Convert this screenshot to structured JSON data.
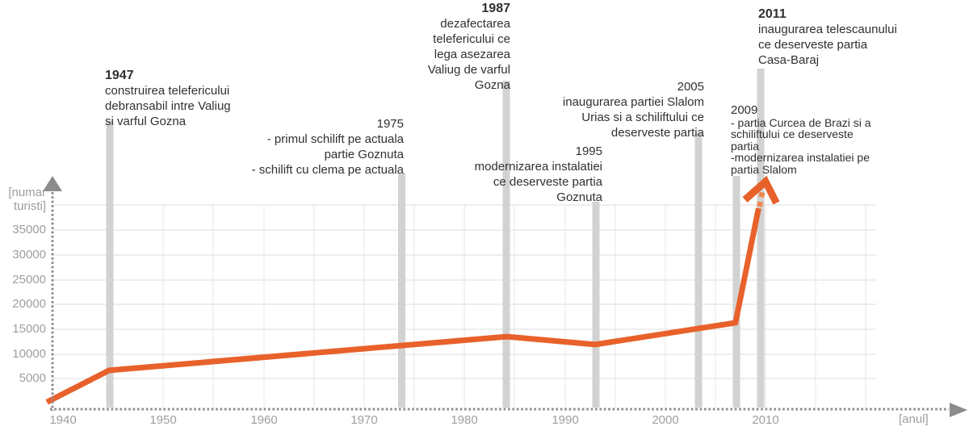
{
  "chart_data": {
    "type": "line",
    "title": "",
    "xlabel": "[anul]",
    "ylabel": "[numar\nturisti]",
    "x_ticks": [
      "1940",
      "1950",
      "1960",
      "1970",
      "1980",
      "1990",
      "2000",
      "2010"
    ],
    "y_ticks": [
      "35000",
      "30000",
      "25000",
      "20000",
      "15000",
      "10000",
      "5000"
    ],
    "x_range": [
      1937,
      2015
    ],
    "ylim": [
      0,
      40000
    ],
    "grid": true,
    "legend": "none",
    "series": [
      {
        "name": "numar turisti",
        "points": [
          [
            1938.4,
            300
          ],
          [
            1944.6,
            6700
          ],
          [
            1984.2,
            13500
          ],
          [
            1993.0,
            11900
          ],
          [
            2007.0,
            16300
          ],
          [
            2009.3,
            39400
          ]
        ],
        "continues_off_chart_with_dashed_segment_and_up_arrow": true
      }
    ],
    "events": [
      {
        "year": "1947",
        "bold": true,
        "text": "construirea telefericului\ndebransabil intre Valiug\nsi varful Gozna"
      },
      {
        "year": "1975",
        "bold": false,
        "text": "- primul schilift pe actuala\npartie Goznuta\n- schilift cu clema pe actuala"
      },
      {
        "year": "1987",
        "bold": true,
        "text": "dezafectarea\ntelefericului ce\nlega asezarea\nValiug de varful\nGozna"
      },
      {
        "year": "1995",
        "bold": false,
        "text": "modernizarea instalatiei\nce deserveste partia\nGoznuta"
      },
      {
        "year": "2005",
        "bold": false,
        "text": "inaugurarea partiei Slalom\nUrias si a schiliftului ce\ndeserveste partia"
      },
      {
        "year": "2009",
        "bold": false,
        "text": "- partia Curcea de Brazi si a\nschiliftului ce deserveste\npartia\n-modernizarea instalatiei pe\npartia Slalom"
      },
      {
        "year": "2011",
        "bold": true,
        "text": "inaugurarea telescaunului\nce deserveste partia\nCasa-Baraj"
      }
    ],
    "colors": {
      "line": "#e8612b",
      "line_dashed": "#ef8850",
      "event_bars": "#d2d2d2",
      "gridlines": "#e2e2e2",
      "axis": "#8c8c8c",
      "tick_text": "#9e9e9e",
      "event_text": "#303030"
    }
  }
}
